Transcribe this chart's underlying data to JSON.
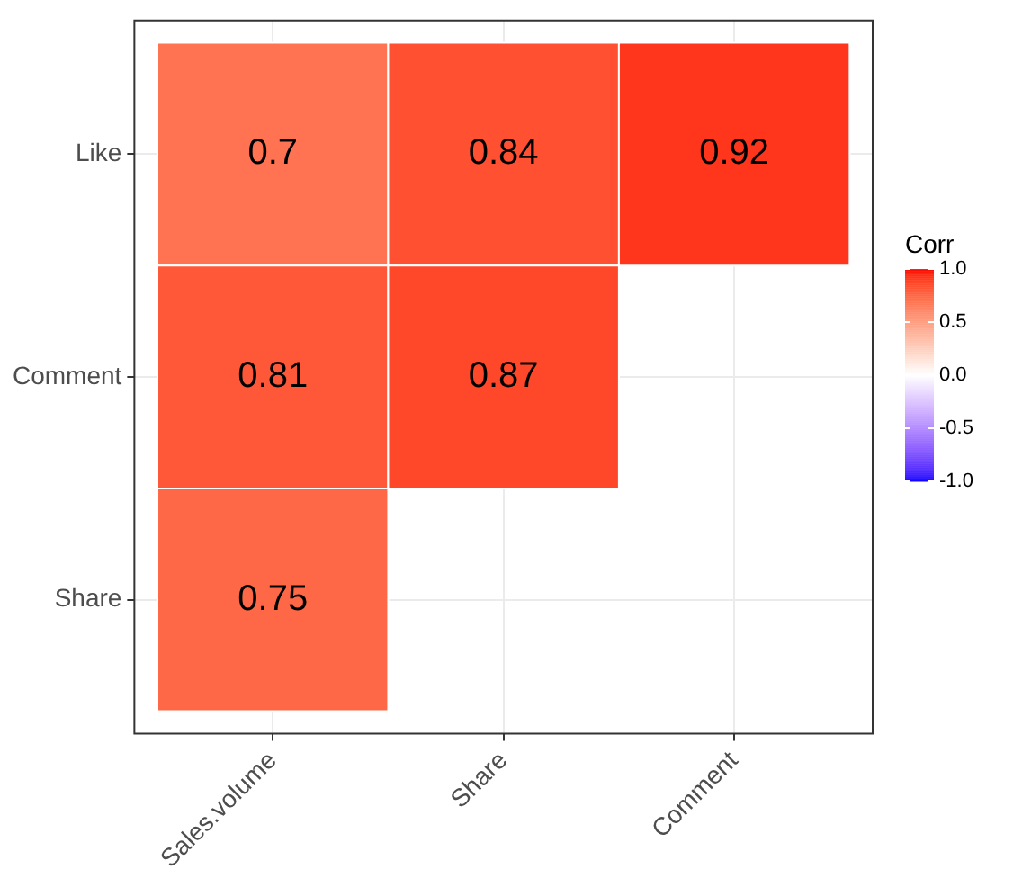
{
  "chart_data": {
    "type": "heatmap",
    "categories": [
      "Sales.volume",
      "Share",
      "Comment"
    ],
    "y_categories": [
      "Like",
      "Comment",
      "Share"
    ],
    "cells": [
      [
        0.7,
        0.84,
        0.92
      ],
      [
        0.81,
        0.87,
        null
      ],
      [
        0.75,
        null,
        null
      ]
    ],
    "data_labels": true,
    "clabel": "Corr",
    "clim": [
      -1,
      1
    ],
    "cticks": [
      {
        "value": 1,
        "label": "1.0"
      },
      {
        "value": 0.5,
        "label": "0.5"
      },
      {
        "value": 0,
        "label": "0.0"
      },
      {
        "value": -0.5,
        "label": "-0.5"
      },
      {
        "value": -1,
        "label": "-1.0"
      }
    ],
    "grid": true
  }
}
